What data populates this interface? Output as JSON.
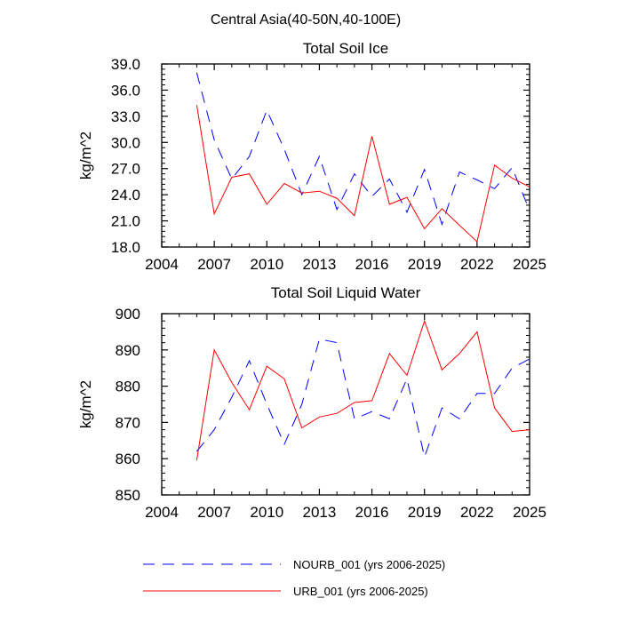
{
  "figure_title": "Central Asia(40-50N,40-100E)",
  "chart_data": [
    {
      "type": "line",
      "title": "Total Soil Ice",
      "xlabel": "",
      "ylabel": "kg/m^2",
      "xlim": [
        2004,
        2025
      ],
      "ylim": [
        18,
        39
      ],
      "x_ticks": [
        "2004",
        "2007",
        "2010",
        "2013",
        "2016",
        "2019",
        "2022",
        "2025"
      ],
      "y_ticks": [
        "18.0",
        "21.0",
        "24.0",
        "27.0",
        "30.0",
        "33.0",
        "36.0",
        "39.0"
      ],
      "x": [
        2006,
        2007,
        2008,
        2009,
        2010,
        2011,
        2012,
        2013,
        2014,
        2015,
        2016,
        2017,
        2018,
        2019,
        2020,
        2021,
        2022,
        2023,
        2024,
        2025
      ],
      "series": [
        {
          "name": "NOURB_001 (yrs 2006-2025)",
          "color": "#0000ff",
          "dash": "dashed",
          "values": [
            38.0,
            30.3,
            25.8,
            28.4,
            33.7,
            29.2,
            24.0,
            28.4,
            22.3,
            26.4,
            23.8,
            25.8,
            22.0,
            26.9,
            20.6,
            26.6,
            25.7,
            24.7,
            27.1,
            22.2
          ]
        },
        {
          "name": "URB_001 (yrs 2006-2025)",
          "color": "#ff0000",
          "dash": "solid",
          "values": [
            34.3,
            21.8,
            26.0,
            26.4,
            22.9,
            25.3,
            24.2,
            24.4,
            23.6,
            21.6,
            30.7,
            22.9,
            23.7,
            20.1,
            22.4,
            20.5,
            18.6,
            27.4,
            25.9,
            24.9
          ]
        }
      ]
    },
    {
      "type": "line",
      "title": "Total Soil Liquid Water",
      "xlabel": "",
      "ylabel": "kg/m^2",
      "xlim": [
        2004,
        2025
      ],
      "ylim": [
        850,
        900
      ],
      "x_ticks": [
        "2004",
        "2007",
        "2010",
        "2013",
        "2016",
        "2019",
        "2022",
        "2025"
      ],
      "y_ticks": [
        "850",
        "860",
        "870",
        "880",
        "890",
        "900"
      ],
      "x": [
        2006,
        2007,
        2008,
        2009,
        2010,
        2011,
        2012,
        2013,
        2014,
        2015,
        2016,
        2017,
        2018,
        2019,
        2020,
        2021,
        2022,
        2023,
        2024,
        2025
      ],
      "series": [
        {
          "name": "NOURB_001 (yrs 2006-2025)",
          "color": "#0000ff",
          "dash": "dashed",
          "values": [
            862.0,
            868.0,
            877.0,
            887.0,
            875.0,
            864.0,
            875.0,
            893.0,
            892.0,
            871.0,
            873.0,
            871.0,
            882.0,
            860.5,
            874.0,
            871.0,
            878.0,
            878.0,
            885.0,
            887.5
          ]
        },
        {
          "name": "URB_001 (yrs 2006-2025)",
          "color": "#ff0000",
          "dash": "solid",
          "values": [
            859.5,
            890.0,
            881.0,
            873.5,
            885.5,
            882.0,
            868.5,
            871.5,
            872.5,
            875.5,
            876.0,
            889.0,
            883.0,
            898.0,
            884.5,
            889.0,
            895.0,
            874.0,
            867.5,
            868.0
          ]
        }
      ]
    }
  ],
  "legend": [
    {
      "label": "NOURB_001 (yrs 2006-2025)",
      "color": "#0000ff",
      "dash": "dashed"
    },
    {
      "label": "URB_001 (yrs 2006-2025)",
      "color": "#ff0000",
      "dash": "solid"
    }
  ]
}
